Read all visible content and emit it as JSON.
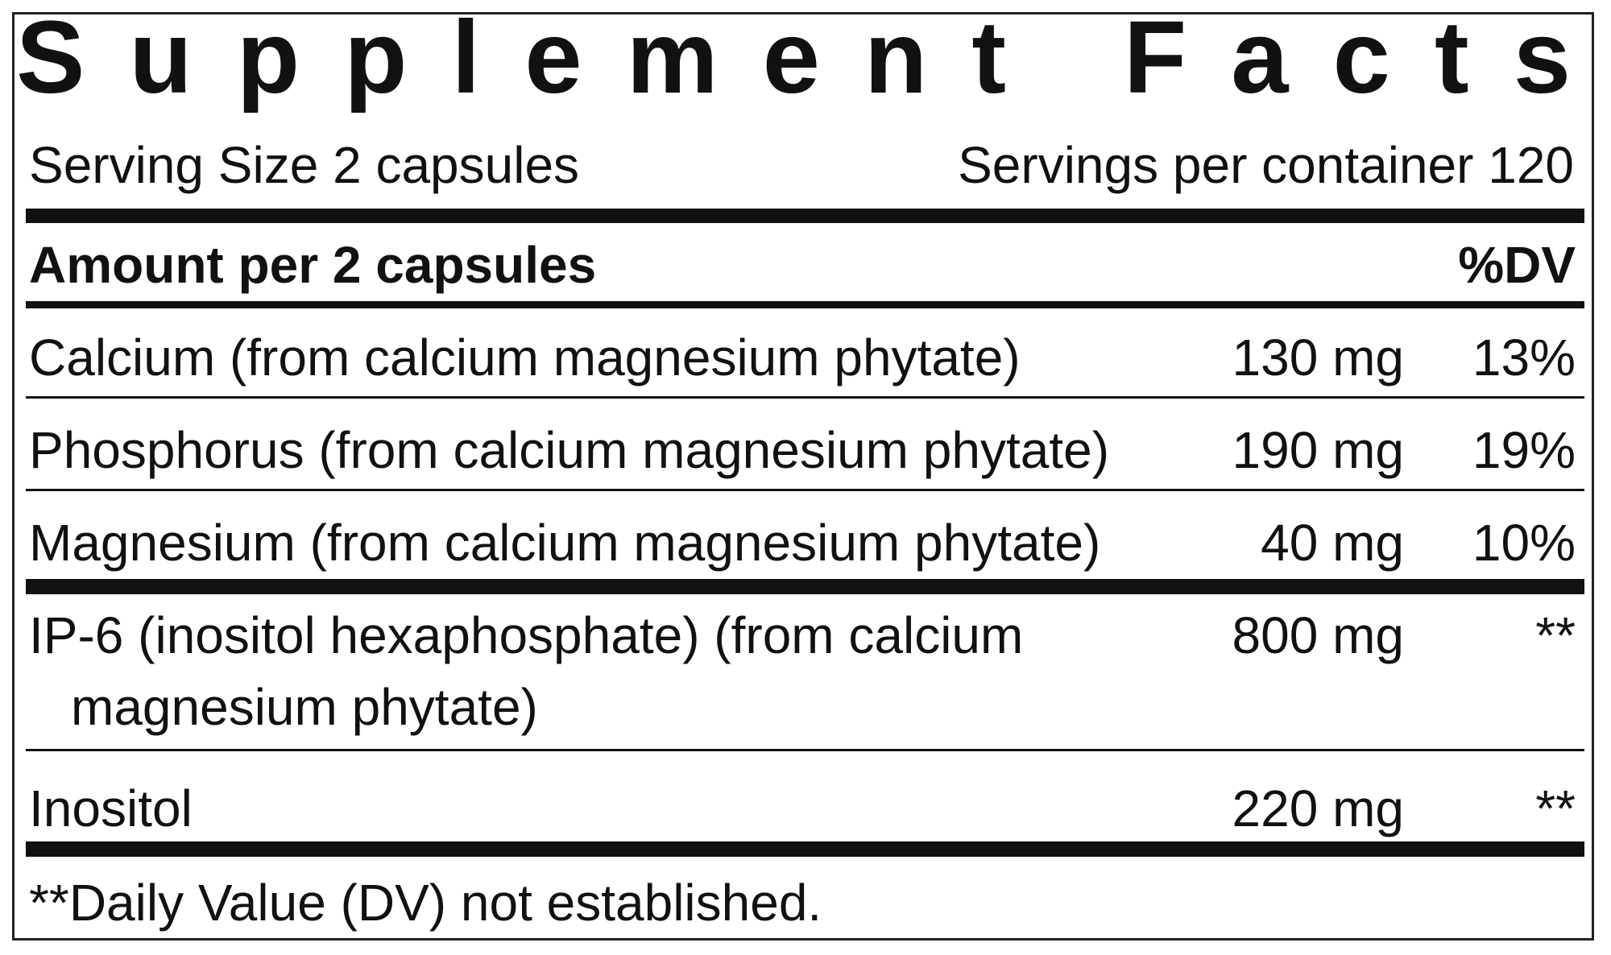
{
  "header": {
    "title": "Supplement Facts",
    "serving_size": "Serving Size 2 capsules",
    "servings_per_container": "Servings per container 120"
  },
  "table": {
    "columns": [
      "Amount per 2 capsules",
      "%DV"
    ],
    "rows": [
      [
        "Calcium (from calcium magnesium phytate)",
        "130 mg",
        "13%"
      ],
      [
        "Phosphorus (from calcium magnesium phytate)",
        "190 mg",
        "19%"
      ],
      [
        "Magnesium (from calcium magnesium phytate)",
        "40 mg",
        "10%"
      ],
      [
        "IP-6 (inositol hexaphosphate) (from calcium magnesium phytate)",
        "800 mg",
        "**"
      ],
      [
        "Inositol",
        "220 mg",
        "**"
      ]
    ]
  },
  "footnote": "**Daily Value (DV) not established."
}
